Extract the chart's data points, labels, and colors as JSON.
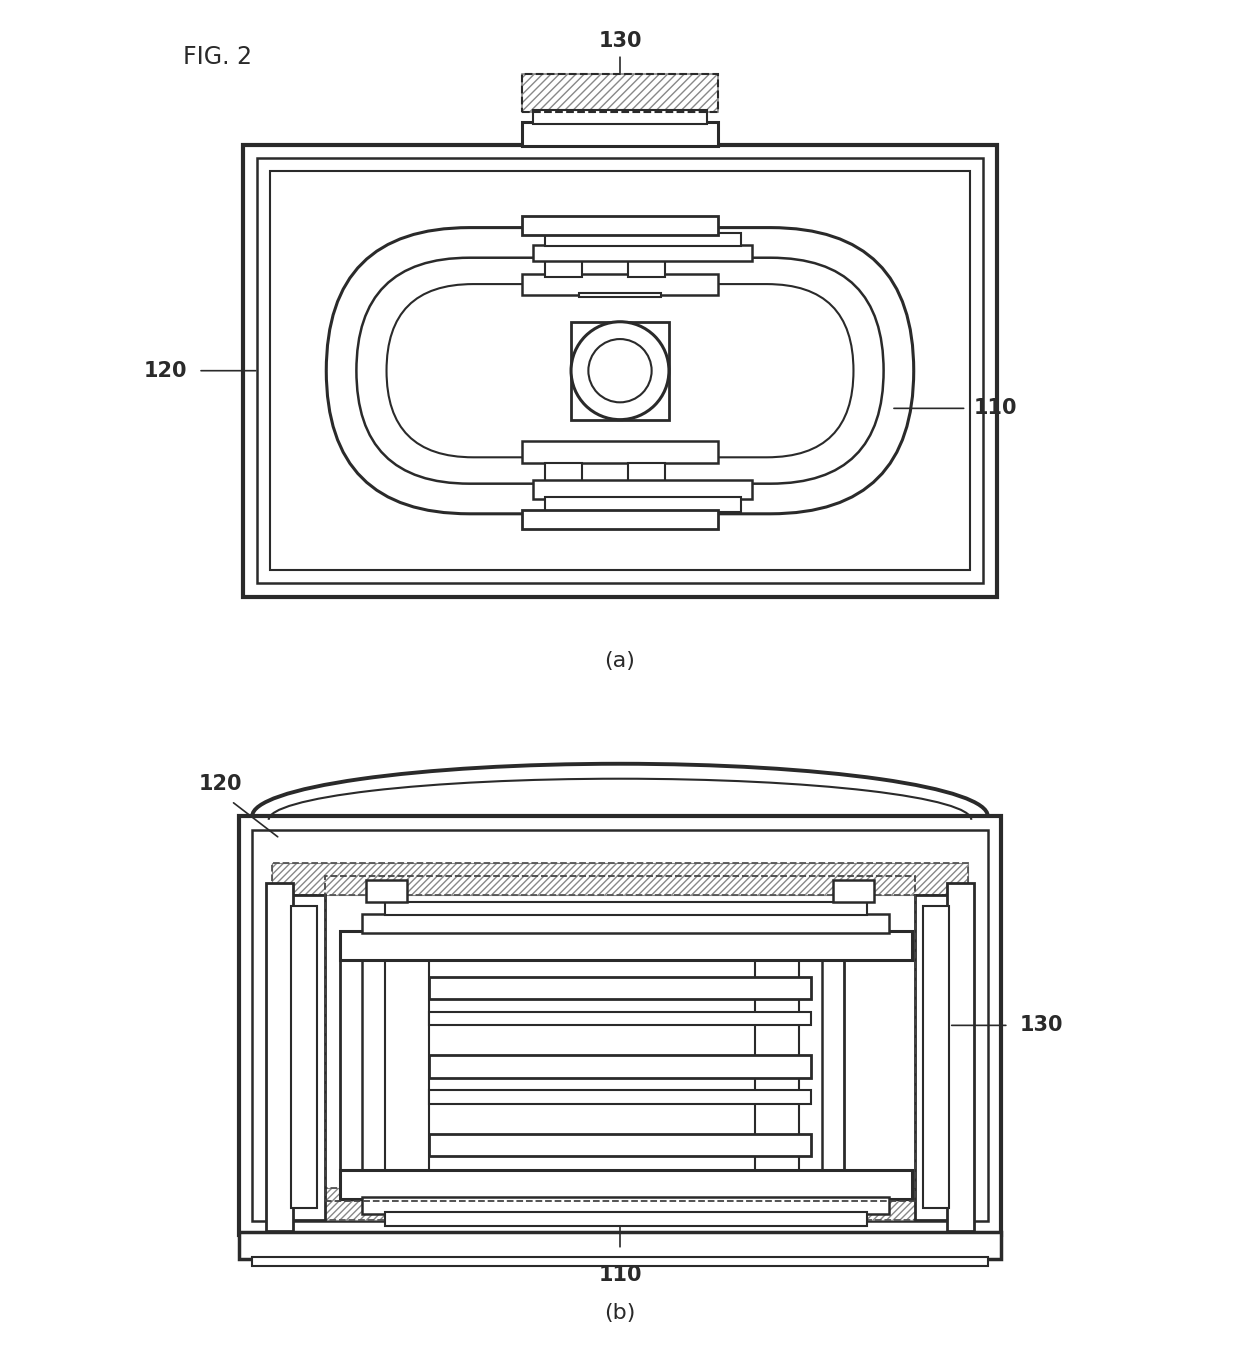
{
  "title": "FIG. 2",
  "label_a": "(a)",
  "label_b": "(b)",
  "bg_color": "#ffffff",
  "line_color": "#2a2a2a",
  "label_110": "110",
  "label_120": "120",
  "label_130": "130",
  "fig_width": 12.4,
  "fig_height": 13.59
}
